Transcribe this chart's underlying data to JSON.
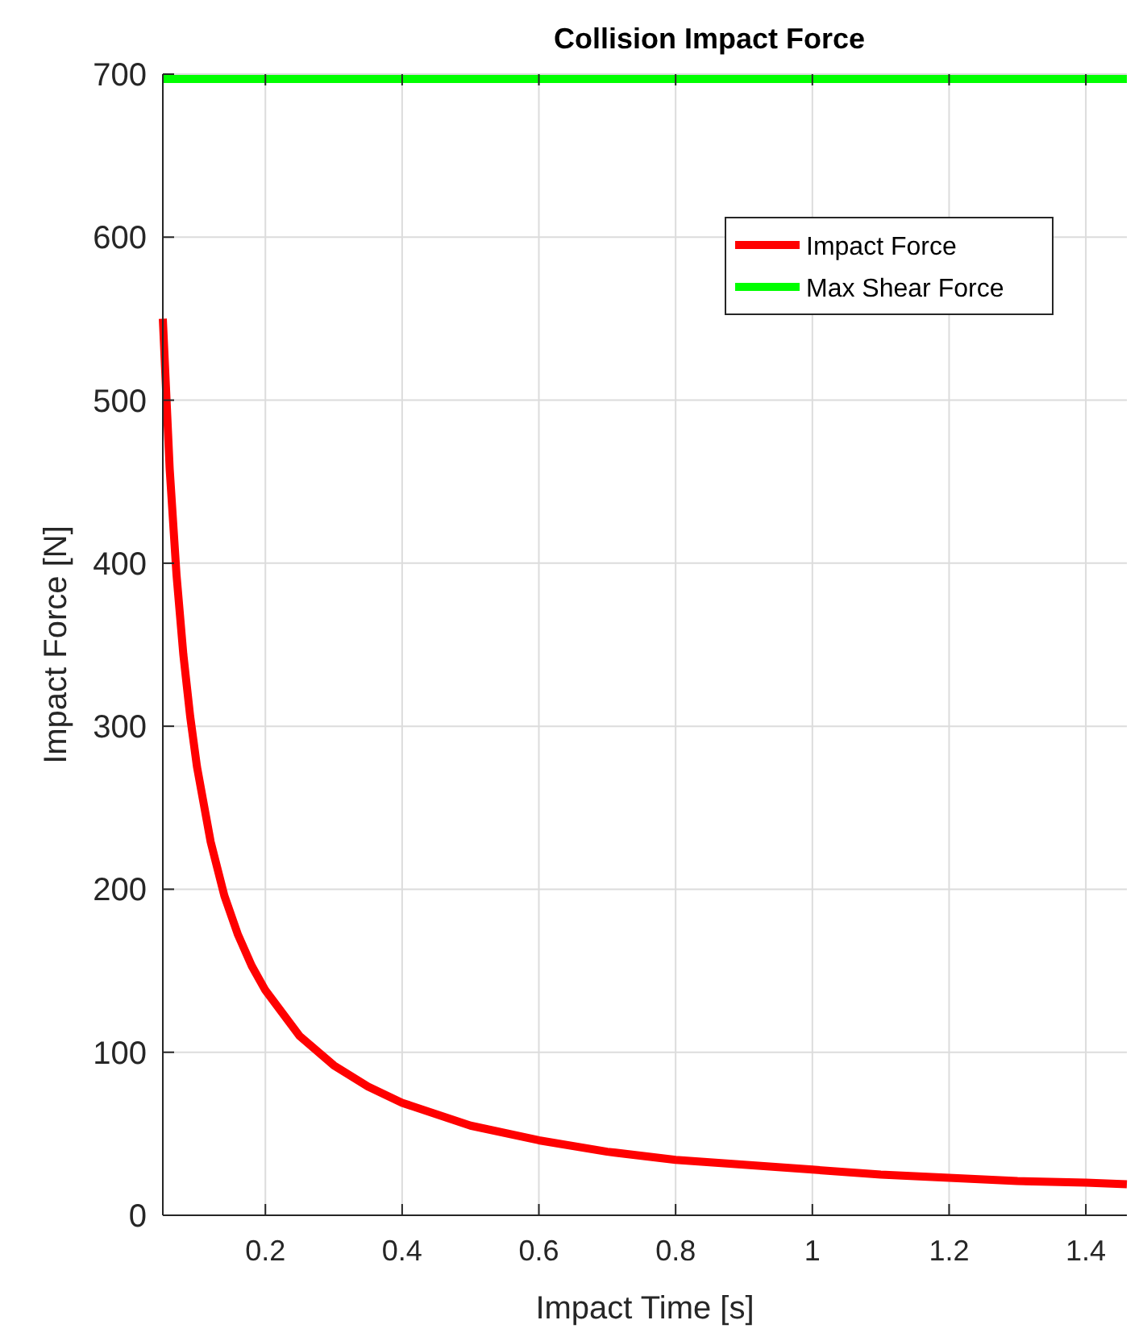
{
  "chart_data": {
    "type": "line",
    "title": "Collision Impact Force",
    "xlabel": "Impact Time [s]",
    "ylabel": "Impact Force [N]",
    "xlim": [
      0.05,
      1.46
    ],
    "xticks": [
      0.2,
      0.4,
      0.6,
      0.8,
      1,
      1.2,
      1.4
    ],
    "ylim": [
      0,
      700
    ],
    "yticks": [
      0,
      100,
      200,
      300,
      400,
      500,
      600,
      700
    ],
    "grid": true,
    "legend": "top right",
    "line_style": "solid",
    "marker": "none",
    "series": [
      {
        "name": "Impact Force",
        "color": "#ff0000",
        "x": [
          0.05,
          0.06,
          0.07,
          0.08,
          0.09,
          0.1,
          0.12,
          0.14,
          0.16,
          0.18,
          0.2,
          0.25,
          0.3,
          0.35,
          0.4,
          0.5,
          0.6,
          0.7,
          0.8,
          0.9,
          1.0,
          1.1,
          1.2,
          1.3,
          1.4,
          1.46
        ],
        "values": [
          550,
          458,
          393,
          344,
          306,
          275,
          229,
          196,
          172,
          153,
          138,
          110,
          92,
          79,
          69,
          55,
          46,
          39,
          34,
          31,
          28,
          25,
          23,
          21,
          20,
          19
        ]
      },
      {
        "name": "Max Shear Force",
        "color": "#00ff00",
        "x": [
          0.05,
          1.46
        ],
        "values": [
          697,
          697
        ]
      }
    ]
  }
}
